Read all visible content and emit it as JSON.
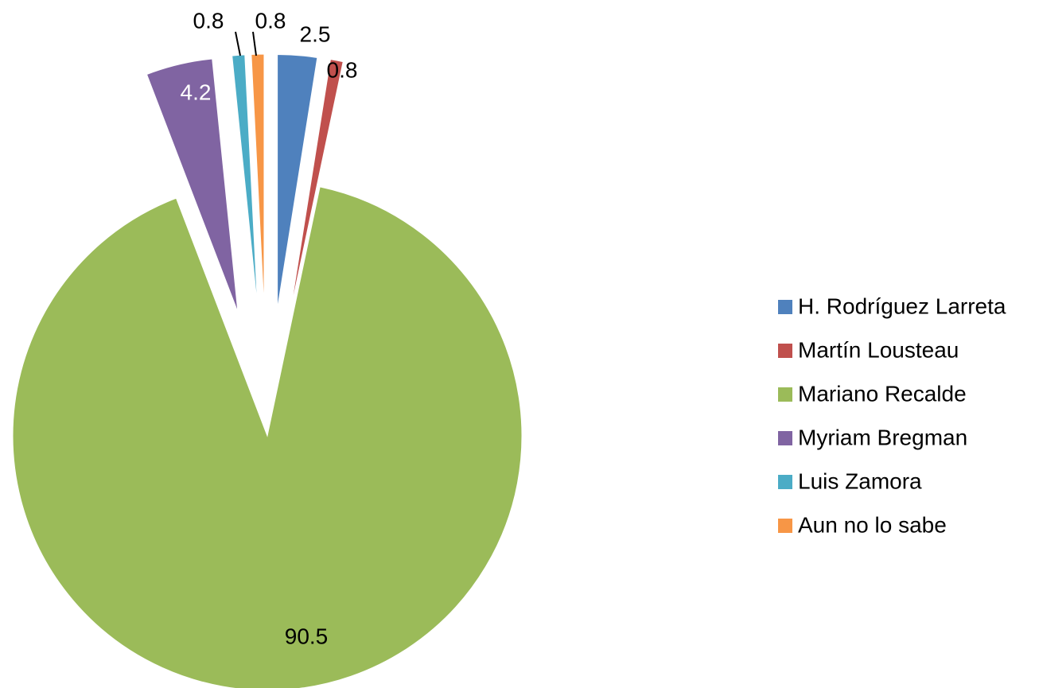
{
  "chart_data": {
    "type": "pie",
    "categories": [
      "H. Rodríguez Larreta",
      "Martín Lousteau",
      "Mariano Recalde",
      "Myriam Bregman",
      "Luis Zamora",
      "Aun no lo sabe"
    ],
    "values": [
      2.5,
      0.8,
      90.5,
      4.2,
      0.8,
      0.8
    ],
    "colors": [
      "#4f81bd",
      "#c0504d",
      "#9bbb59",
      "#8064a2",
      "#4bacc6",
      "#f79646"
    ],
    "legend": "right"
  }
}
